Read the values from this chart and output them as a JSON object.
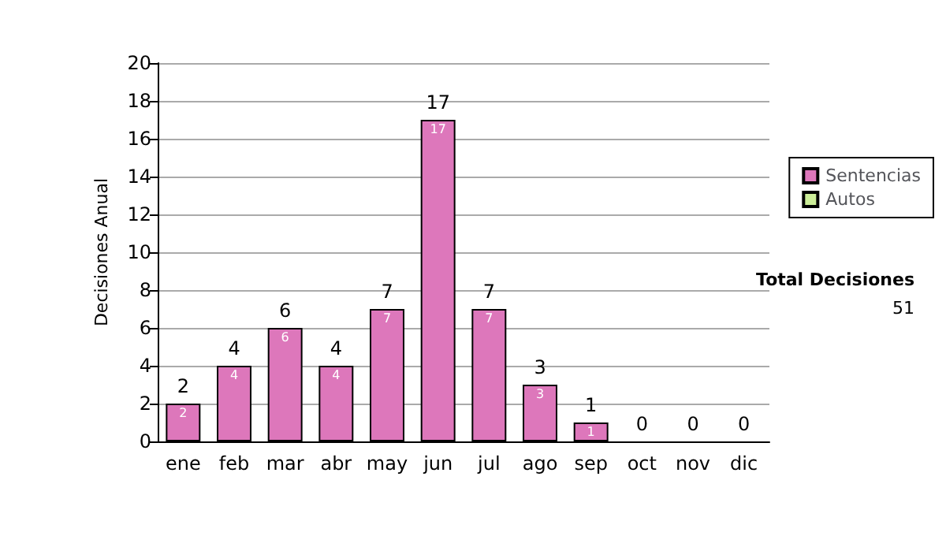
{
  "chart_data": {
    "type": "bar",
    "stacked": true,
    "ylabel": "Decisiones Anual",
    "categories": [
      "ene",
      "feb",
      "mar",
      "abr",
      "may",
      "jun",
      "jul",
      "ago",
      "sep",
      "oct",
      "nov",
      "dic"
    ],
    "series": [
      {
        "name": "Sentencias",
        "color": "#dd77bb",
        "values": [
          2,
          4,
          6,
          4,
          7,
          17,
          7,
          3,
          1,
          0,
          0,
          0
        ],
        "value_labels": [
          "2",
          "4",
          "6",
          "4",
          "7",
          "17",
          "7",
          "3",
          "1",
          null,
          null,
          null
        ]
      },
      {
        "name": "Autos",
        "color": "#ccee99",
        "values": [
          0,
          0,
          0,
          0,
          0,
          0,
          0,
          0,
          0,
          0,
          0,
          0
        ]
      }
    ],
    "totals": [
      "2",
      "4",
      "6",
      "4",
      "7",
      "17",
      "7",
      "3",
      "1",
      "0",
      "0",
      "0"
    ],
    "ylim": [
      0,
      20
    ],
    "yticks": [
      0,
      2,
      4,
      6,
      8,
      10,
      12,
      14,
      16,
      18,
      20
    ],
    "grid": "y",
    "legend": "right",
    "annotations": [
      "Total Decisiones",
      "51"
    ]
  }
}
